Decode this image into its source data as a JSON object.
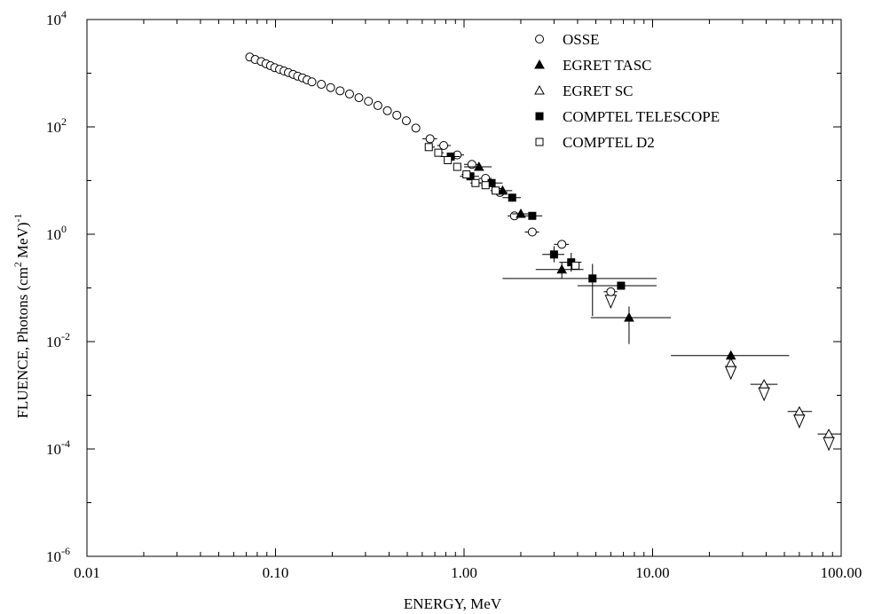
{
  "chart_data": {
    "type": "scatter",
    "xlabel": "ENERGY, MeV",
    "ylabel_main": "FLUENCE, Photons (cm",
    "ylabel_unit": "MeV)",
    "ylabel_sup1": "2",
    "ylabel_sup2": "-1",
    "xscale": "log",
    "yscale": "log",
    "xlim": [
      0.01,
      100
    ],
    "ylim": [
      1e-06,
      10000.0
    ],
    "grid": false,
    "legend_position": "top-right",
    "x_ticks": [
      {
        "value": 0.01,
        "label": "0.01"
      },
      {
        "value": 0.1,
        "label": "0.10"
      },
      {
        "value": 1,
        "label": "1.00"
      },
      {
        "value": 10,
        "label": "10.00"
      },
      {
        "value": 100,
        "label": "100.00"
      }
    ],
    "y_ticks": [
      {
        "value": 10000.0,
        "base": "10",
        "exp": "4"
      },
      {
        "value": 100.0,
        "base": "10",
        "exp": "2"
      },
      {
        "value": 1,
        "base": "10",
        "exp": "0"
      },
      {
        "value": 0.01,
        "base": "10",
        "exp": "-2"
      },
      {
        "value": 0.0001,
        "base": "10",
        "exp": "-4"
      },
      {
        "value": 1e-06,
        "base": "10",
        "exp": "-6"
      }
    ],
    "series": [
      {
        "name": "OSSE",
        "marker": "open-circle",
        "points": [
          {
            "x": 0.073,
            "y": 2000
          },
          {
            "x": 0.078,
            "y": 1800
          },
          {
            "x": 0.084,
            "y": 1650
          },
          {
            "x": 0.089,
            "y": 1500
          },
          {
            "x": 0.094,
            "y": 1380
          },
          {
            "x": 0.099,
            "y": 1270
          },
          {
            "x": 0.105,
            "y": 1180
          },
          {
            "x": 0.111,
            "y": 1100
          },
          {
            "x": 0.117,
            "y": 1030
          },
          {
            "x": 0.124,
            "y": 950
          },
          {
            "x": 0.131,
            "y": 880
          },
          {
            "x": 0.139,
            "y": 820
          },
          {
            "x": 0.147,
            "y": 750
          },
          {
            "x": 0.156,
            "y": 690
          },
          {
            "x": 0.175,
            "y": 620
          },
          {
            "x": 0.196,
            "y": 540
          },
          {
            "x": 0.22,
            "y": 470
          },
          {
            "x": 0.247,
            "y": 410
          },
          {
            "x": 0.277,
            "y": 350
          },
          {
            "x": 0.311,
            "y": 300
          },
          {
            "x": 0.349,
            "y": 250
          },
          {
            "x": 0.392,
            "y": 200
          },
          {
            "x": 0.44,
            "y": 165
          },
          {
            "x": 0.494,
            "y": 130
          },
          {
            "x": 0.555,
            "y": 95
          },
          {
            "x": 0.66,
            "y": 60,
            "xerr": [
              0.6,
              0.72
            ]
          },
          {
            "x": 0.78,
            "y": 45,
            "xerr": [
              0.72,
              0.85
            ]
          },
          {
            "x": 0.92,
            "y": 30,
            "xerr": [
              0.85,
              1.0
            ]
          },
          {
            "x": 1.1,
            "y": 20,
            "xerr": [
              1.0,
              1.2
            ]
          },
          {
            "x": 1.3,
            "y": 11,
            "xerr": [
              1.2,
              1.4
            ]
          },
          {
            "x": 1.55,
            "y": 6,
            "xerr": [
              1.4,
              1.7
            ]
          },
          {
            "x": 1.85,
            "y": 2.2,
            "xerr": [
              1.7,
              2.0
            ]
          },
          {
            "x": 2.3,
            "y": 1.1,
            "xerr": [
              2.1,
              2.5
            ]
          },
          {
            "x": 3.3,
            "y": 0.65,
            "xerr": [
              3.0,
              3.6
            ]
          },
          {
            "x": 6.0,
            "y": 0.085,
            "xerr": [
              5.5,
              6.5
            ],
            "upper_limit": true
          }
        ]
      },
      {
        "name": "EGRET TASC",
        "marker": "filled-triangle",
        "points": [
          {
            "x": 1.2,
            "y": 18,
            "xerr": [
              1.0,
              1.4
            ]
          },
          {
            "x": 1.6,
            "y": 6.5,
            "xerr": [
              1.4,
              1.8
            ]
          },
          {
            "x": 2.0,
            "y": 2.4,
            "xerr": [
              1.8,
              2.2
            ]
          },
          {
            "x": 3.3,
            "y": 0.22,
            "xerr": [
              2.4,
              4.3
            ],
            "yerr": [
              0.15,
              0.3
            ]
          },
          {
            "x": 7.5,
            "y": 0.028,
            "xerr": [
              4.7,
              12.5
            ],
            "yerr": [
              0.009,
              0.045
            ]
          },
          {
            "x": 26,
            "y": 0.0055,
            "xerr": [
              12.5,
              53
            ]
          }
        ]
      },
      {
        "name": "EGRET SC",
        "marker": "open-triangle",
        "points": [
          {
            "x": 26,
            "y": 0.004,
            "upper_limit": true
          },
          {
            "x": 39,
            "y": 0.0016,
            "xerr": [
              33,
              46
            ],
            "upper_limit": true
          },
          {
            "x": 60,
            "y": 0.0005,
            "xerr": [
              52,
              70
            ],
            "upper_limit": true
          },
          {
            "x": 86,
            "y": 0.00019,
            "xerr": [
              75,
              100
            ],
            "upper_limit": true
          }
        ]
      },
      {
        "name": "COMPTEL TELESCOPE",
        "marker": "filled-square",
        "points": [
          {
            "x": 0.85,
            "y": 28,
            "xerr": [
              0.75,
              0.95
            ]
          },
          {
            "x": 1.08,
            "y": 12,
            "xerr": [
              0.95,
              1.2
            ]
          },
          {
            "x": 1.4,
            "y": 9,
            "xerr": [
              1.2,
              1.6
            ]
          },
          {
            "x": 1.8,
            "y": 4.8,
            "xerr": [
              1.6,
              2.0
            ]
          },
          {
            "x": 2.3,
            "y": 2.2,
            "xerr": [
              2.0,
              2.6
            ]
          },
          {
            "x": 3.0,
            "y": 0.42,
            "xerr": [
              2.6,
              3.4
            ],
            "yerr": [
              0.3,
              0.6
            ]
          },
          {
            "x": 3.7,
            "y": 0.3,
            "xerr": [
              3.2,
              4.2
            ],
            "yerr": [
              0.2,
              0.45
            ]
          },
          {
            "x": 4.8,
            "y": 0.15,
            "xerr": [
              1.6,
              10.5
            ],
            "yerr": [
              0.03,
              0.28
            ]
          },
          {
            "x": 6.8,
            "y": 0.11,
            "xerr": [
              4.0,
              10.5
            ]
          }
        ]
      },
      {
        "name": "COMPTEL D2",
        "marker": "open-square",
        "points": [
          {
            "x": 0.65,
            "y": 42,
            "xerr": [
              0.62,
              0.7
            ]
          },
          {
            "x": 0.73,
            "y": 33,
            "xerr": [
              0.7,
              0.78
            ]
          },
          {
            "x": 0.82,
            "y": 24,
            "xerr": [
              0.78,
              0.88
            ]
          },
          {
            "x": 0.92,
            "y": 18,
            "xerr": [
              0.88,
              0.97
            ]
          },
          {
            "x": 1.03,
            "y": 13,
            "xerr": [
              0.97,
              1.08
            ]
          },
          {
            "x": 1.15,
            "y": 9,
            "xerr": [
              1.08,
              1.23
            ]
          },
          {
            "x": 1.3,
            "y": 8.2,
            "xerr": [
              1.23,
              1.38
            ]
          },
          {
            "x": 1.47,
            "y": 6.5,
            "xerr": [
              1.38,
              1.55
            ]
          },
          {
            "x": 3.9,
            "y": 0.26,
            "xerr": [
              3.7,
              4.1
            ]
          }
        ]
      }
    ]
  }
}
